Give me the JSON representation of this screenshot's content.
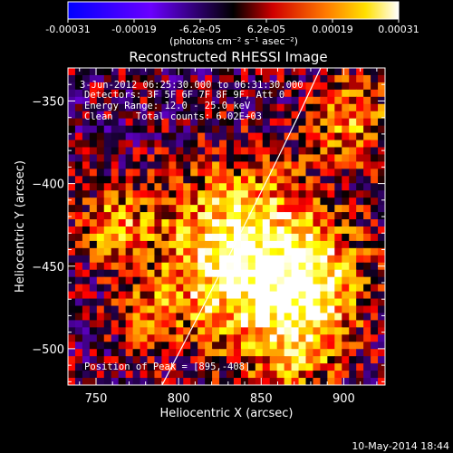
{
  "title": "Reconstructed RHESSI Image",
  "colorbar": {
    "tick_labels": [
      "-0.00031",
      "-0.00019",
      "-6.2e-05",
      "6.2e-05",
      "0.00019",
      "0.00031"
    ],
    "units_label": "(photons cm⁻² s⁻¹ asec⁻²)",
    "range": [
      -0.00031,
      0.00031
    ],
    "colormap": [
      "#0000ff",
      "#7a00ff",
      "#000000",
      "#ff0000",
      "#ffa500",
      "#ffff00",
      "#ffffff"
    ]
  },
  "annotations": [
    "3-Jun-2012 06:25:30.000 to 06:31:30.000",
    "Detectors: 3F 5F 6F 7F 8F 9F, Att 0",
    "Energy Range: 12.0 - 25.0 keV",
    "Clean    Total counts: 6.02E+03"
  ],
  "peak_label": "Position of Peak = [895,-408]",
  "footer_date": "10-May-2014 18:44",
  "chart_data": {
    "type": "heatmap",
    "title": "Reconstructed RHESSI Image",
    "xlabel": "Heliocentric X (arcsec)",
    "ylabel": "Heliocentric Y (arcsec)",
    "xlim": [
      733,
      925
    ],
    "ylim": [
      -522,
      -330
    ],
    "x_ticks": [
      750,
      800,
      850,
      900
    ],
    "x_tick_labels": [
      "750",
      "800",
      "850",
      "900"
    ],
    "y_ticks": [
      -350,
      -400,
      -450,
      -500
    ],
    "y_tick_labels": [
      "−350",
      "−400",
      "−450",
      "−500"
    ],
    "value_range": [
      -0.00031,
      0.00031
    ],
    "peak": [
      895,
      -408
    ],
    "limb_curve": {
      "x": [
        790,
        812,
        835,
        855,
        872,
        886
      ],
      "y": [
        -522,
        -480,
        -435,
        -395,
        -360,
        -330
      ]
    },
    "bright_regions": [
      {
        "x": 838,
        "y": -445,
        "sigma": 38,
        "amp": 1.0
      },
      {
        "x": 760,
        "y": -425,
        "sigma": 14,
        "amp": 0.55
      },
      {
        "x": 880,
        "y": -460,
        "sigma": 22,
        "amp": 0.6
      },
      {
        "x": 905,
        "y": -360,
        "sigma": 18,
        "amp": 0.55
      },
      {
        "x": 873,
        "y": -500,
        "sigma": 20,
        "amp": 0.45
      },
      {
        "x": 780,
        "y": -480,
        "sigma": 12,
        "amp": 0.35
      }
    ]
  }
}
